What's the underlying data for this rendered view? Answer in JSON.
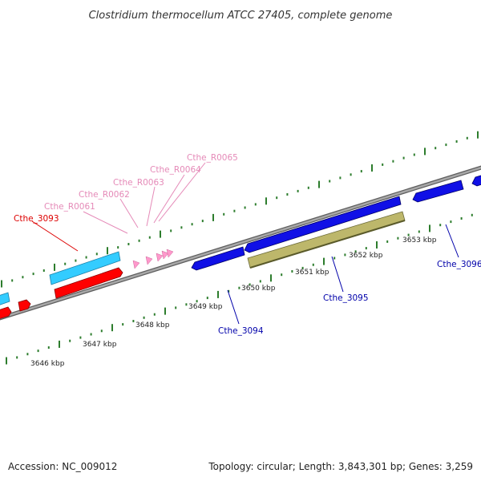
{
  "title": "Clostridium thermocellum ATCC 27405, complete genome",
  "footer": {
    "accession": "Accession: NC_009012",
    "stats": "Topology: circular; Length: 3,843,301 bp; Genes: 3,259"
  },
  "colors": {
    "background": "#ffffff",
    "backbone": "#8a8a8a",
    "tick_mark": "#2d7d2d",
    "cds_forward": "#1010e6",
    "cds_reverse": "#ff0000",
    "cds_cyan": "#33ccff",
    "cds_olive": "#bdb76b",
    "rna": "#ff99cc",
    "label_blue": "#0000aa",
    "label_red": "#dd0000",
    "label_pink": "#e58ab8"
  },
  "ticks": [
    {
      "label": "3646 kbp"
    },
    {
      "label": "3647 kbp"
    },
    {
      "label": "3648 kbp"
    },
    {
      "label": "3649 kbp"
    },
    {
      "label": "3650 kbp"
    },
    {
      "label": "3651 kbp"
    },
    {
      "label": "3652 kbp"
    },
    {
      "label": "3653 kbp"
    }
  ],
  "feature_labels": [
    {
      "name": "Cthe_3093",
      "color": "red"
    },
    {
      "name": "Cthe_R0061",
      "color": "pink"
    },
    {
      "name": "Cthe_R0062",
      "color": "pink"
    },
    {
      "name": "Cthe_R0063",
      "color": "pink"
    },
    {
      "name": "Cthe_R0064",
      "color": "pink"
    },
    {
      "name": "Cthe_R0065",
      "color": "pink"
    },
    {
      "name": "Cthe_3094",
      "color": "blue"
    },
    {
      "name": "Cthe_3095",
      "color": "blue"
    },
    {
      "name": "Cthe_3096",
      "color": "blue"
    }
  ]
}
